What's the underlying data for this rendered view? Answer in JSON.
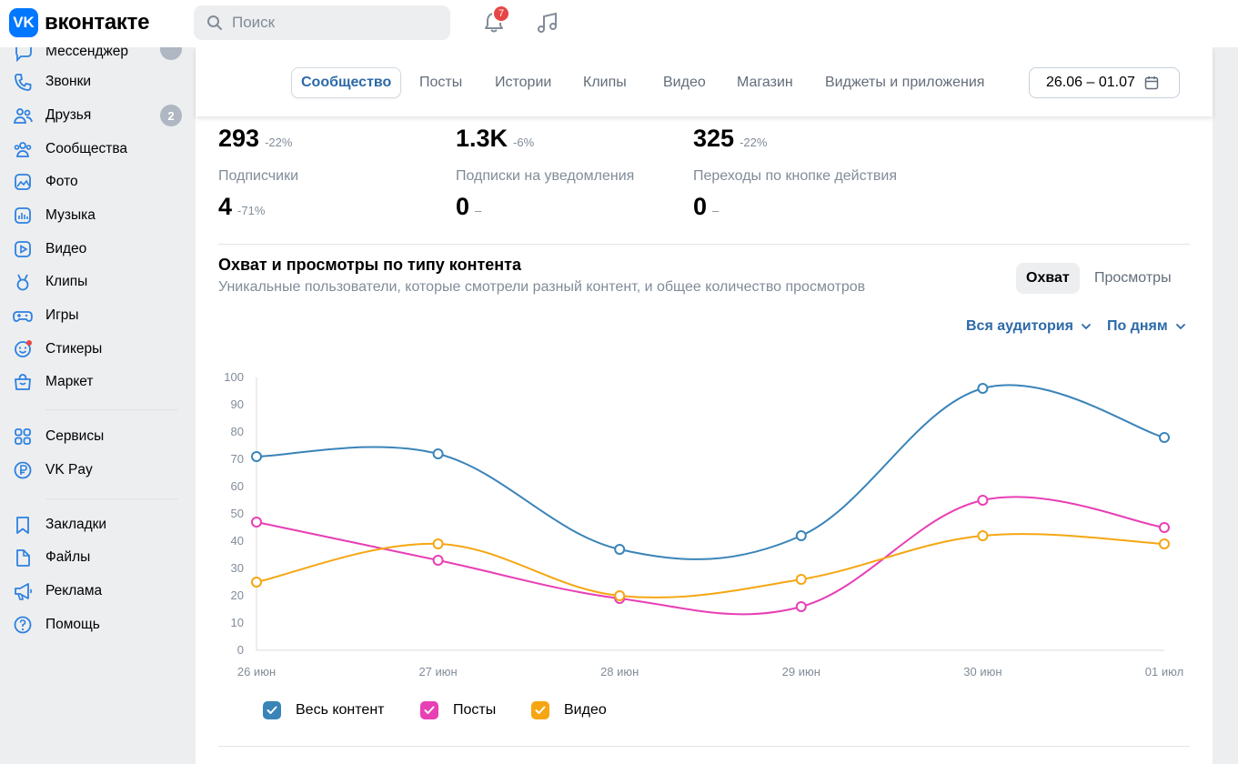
{
  "header": {
    "logo_badge": "VK",
    "logo_text": "вконтакте",
    "search_placeholder": "Поиск",
    "notifications_count": "7"
  },
  "sidebar": {
    "items": [
      {
        "label": "Мессенджер",
        "icon": "message-icon"
      },
      {
        "label": "Звонки",
        "icon": "phone-icon"
      },
      {
        "label": "Друзья",
        "icon": "friends-icon",
        "count": "2"
      },
      {
        "label": "Сообщества",
        "icon": "communities-icon"
      },
      {
        "label": "Фото",
        "icon": "photo-icon"
      },
      {
        "label": "Музыка",
        "icon": "music-icon"
      },
      {
        "label": "Видео",
        "icon": "video-icon"
      },
      {
        "label": "Клипы",
        "icon": "clips-icon"
      },
      {
        "label": "Игры",
        "icon": "games-icon"
      },
      {
        "label": "Стикеры",
        "icon": "stickers-icon"
      },
      {
        "label": "Маркет",
        "icon": "market-icon"
      },
      {
        "label": "Сервисы",
        "icon": "services-icon"
      },
      {
        "label": "VK Pay",
        "icon": "vkpay-icon"
      },
      {
        "label": "Закладки",
        "icon": "bookmark-icon"
      },
      {
        "label": "Файлы",
        "icon": "files-icon"
      },
      {
        "label": "Реклама",
        "icon": "ads-icon"
      },
      {
        "label": "Помощь",
        "icon": "help-icon"
      }
    ]
  },
  "tabs": [
    "Сообщество",
    "Посты",
    "Истории",
    "Клипы",
    "Видео",
    "Магазин",
    "Виджеты и приложения"
  ],
  "active_tab": "Сообщество",
  "date_range": "26.06 – 01.07",
  "stats": {
    "row1": [
      {
        "value": "293",
        "delta": "-22%"
      },
      {
        "value": "1.3K",
        "delta": "-6%"
      },
      {
        "value": "325",
        "delta": "-22%"
      }
    ],
    "row2": [
      {
        "label": "Подписчики",
        "value": "4",
        "delta": "-71%"
      },
      {
        "label": "Подписки на уведомления",
        "value": "0",
        "delta": "–"
      },
      {
        "label": "Переходы по кнопке действия",
        "value": "0",
        "delta": "–"
      }
    ]
  },
  "section": {
    "title": "Охват и просмотры по типу контента",
    "subtitle": "Уникальные пользователи, которые смотрели разный контент, и общее количество просмотров",
    "toggle_active": "Охват",
    "toggle_inactive": "Просмотры",
    "audience_filter": "Вся аудитория",
    "period_filter": "По дням"
  },
  "chart_data": {
    "type": "line",
    "x": [
      "26 июн",
      "27 июн",
      "28 июн",
      "29 июн",
      "30 июн",
      "01 июл"
    ],
    "ylim": [
      0,
      100
    ],
    "yticks": [
      0,
      10,
      20,
      30,
      40,
      50,
      60,
      70,
      80,
      90,
      100
    ],
    "series": [
      {
        "name": "Весь контент",
        "color": "#3a84b8",
        "values": [
          71,
          72,
          37,
          42,
          96,
          78
        ]
      },
      {
        "name": "Посты",
        "color": "#e83fb5",
        "values": [
          47,
          33,
          19,
          16,
          55,
          45
        ]
      },
      {
        "name": "Видео",
        "color": "#f5a612",
        "values": [
          25,
          39,
          20,
          26,
          42,
          39
        ]
      }
    ]
  }
}
